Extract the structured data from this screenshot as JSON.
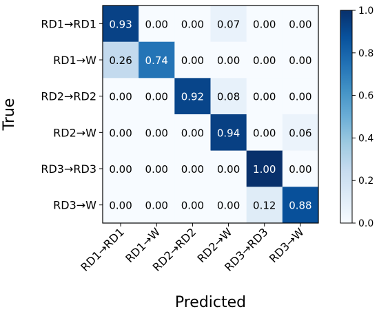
{
  "chart_data": {
    "type": "heatmap",
    "xlabel": "Predicted",
    "ylabel": "True",
    "x_categories": [
      "RD1→RD1",
      "RD1→W",
      "RD2→RD2",
      "RD2→W",
      "RD3→RD3",
      "RD3→W"
    ],
    "y_categories": [
      "RD1→RD1",
      "RD1→W",
      "RD2→RD2",
      "RD2→W",
      "RD3→RD3",
      "RD3→W"
    ],
    "values": [
      [
        0.93,
        0.0,
        0.0,
        0.07,
        0.0,
        0.0
      ],
      [
        0.26,
        0.74,
        0.0,
        0.0,
        0.0,
        0.0
      ],
      [
        0.0,
        0.0,
        0.92,
        0.08,
        0.0,
        0.0
      ],
      [
        0.0,
        0.0,
        0.0,
        0.94,
        0.0,
        0.06
      ],
      [
        0.0,
        0.0,
        0.0,
        0.0,
        1.0,
        0.0
      ],
      [
        0.0,
        0.0,
        0.0,
        0.0,
        0.12,
        0.88
      ]
    ],
    "value_format": "0.00",
    "colormap": "Blues",
    "colorbar": {
      "range": [
        0.0,
        1.0
      ],
      "ticks": [
        "0.0",
        "0.2",
        "0.4",
        "0.6",
        "0.8",
        "1.0"
      ]
    }
  }
}
